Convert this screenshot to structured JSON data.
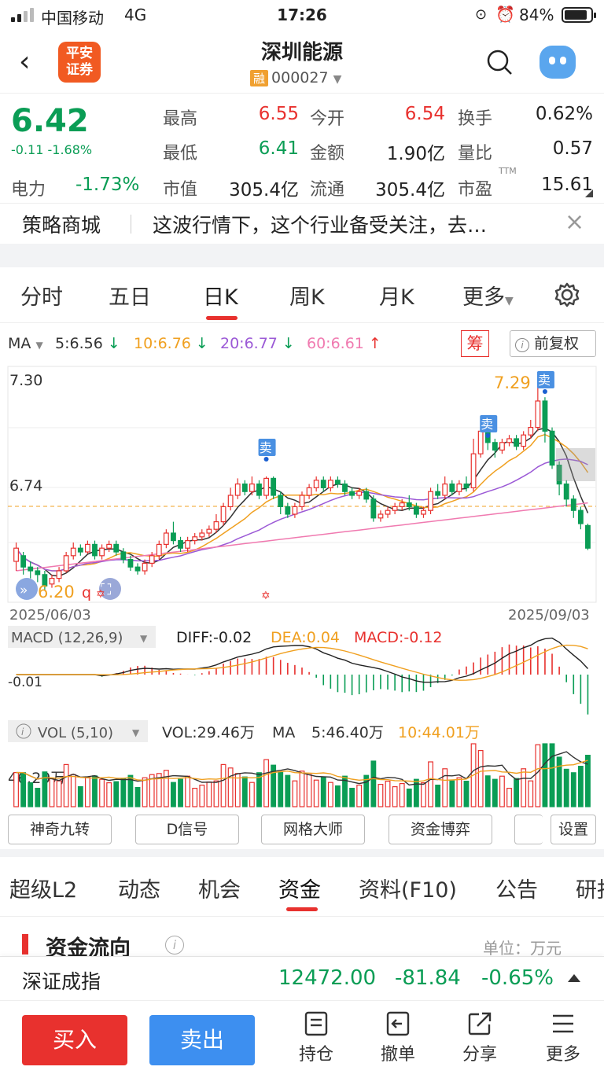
{
  "status_bar": {
    "carrier": "中国移动",
    "network": "4G",
    "time": "17:26",
    "battery": "84%"
  },
  "header": {
    "logo_line1": "平安",
    "logo_line2": "证券",
    "title": "深圳能源",
    "rong_badge": "融",
    "code": "000027"
  },
  "quote": {
    "price": "6.42",
    "change": "-0.11",
    "change_pct": "-1.68%",
    "sector_name": "电力",
    "sector_pct": "-1.73%",
    "fields": [
      {
        "label": "最高",
        "value": "6.55"
      },
      {
        "label": "今开",
        "value": "6.54"
      },
      {
        "label": "换手",
        "value": "0.62%"
      },
      {
        "label": "最低",
        "value": "6.41"
      },
      {
        "label": "金额",
        "value": "1.90亿"
      },
      {
        "label": "量比",
        "value": "0.57"
      },
      {
        "label": "市值",
        "value": "305.4亿"
      },
      {
        "label": "流通",
        "value": "305.4亿"
      },
      {
        "label": "市盈",
        "value": "15.61"
      }
    ],
    "pe_sup": "TTM"
  },
  "banner": {
    "title": "策略商城",
    "text": "这波行情下，这个行业备受关注，去…",
    "close": "×"
  },
  "period_tabs": [
    "分时",
    "五日",
    "日K",
    "周K",
    "月K",
    "更多"
  ],
  "ma": {
    "label": "MA",
    "ma5": "5:6.56",
    "ma10": "10:6.76",
    "ma20": "20:6.77",
    "ma60": "60:6.61",
    "chip_btn": "筹",
    "adjust_btn": "前复权",
    "colors": {
      "ma5": "#333333",
      "ma10": "#f0a020",
      "ma20": "#9b59d6",
      "ma60": "#f07ab0"
    }
  },
  "chart_data": {
    "type": "candlestick",
    "start_date": "2025/06/03",
    "end_date": "2025/09/03",
    "price_ticks": [
      "7.30",
      "6.74"
    ],
    "ylim": [
      6.2,
      7.35
    ],
    "hi_label": "7.29",
    "lo_label": "6.20",
    "sell_mark": "卖",
    "candles": [
      [
        6.35,
        6.42,
        6.45,
        6.3
      ],
      [
        6.38,
        6.32,
        6.4,
        6.28
      ],
      [
        6.32,
        6.3,
        6.35,
        6.26
      ],
      [
        6.3,
        6.28,
        6.32,
        6.24
      ],
      [
        6.28,
        6.22,
        6.3,
        6.2
      ],
      [
        6.23,
        6.26,
        6.28,
        6.21
      ],
      [
        6.26,
        6.3,
        6.32,
        6.24
      ],
      [
        6.3,
        6.38,
        6.4,
        6.29
      ],
      [
        6.38,
        6.42,
        6.45,
        6.36
      ],
      [
        6.42,
        6.4,
        6.44,
        6.38
      ],
      [
        6.4,
        6.44,
        6.46,
        6.39
      ],
      [
        6.44,
        6.38,
        6.46,
        6.36
      ],
      [
        6.38,
        6.42,
        6.44,
        6.36
      ],
      [
        6.42,
        6.44,
        6.46,
        6.4
      ],
      [
        6.44,
        6.4,
        6.46,
        6.38
      ],
      [
        6.4,
        6.36,
        6.42,
        6.34
      ],
      [
        6.36,
        6.32,
        6.38,
        6.3
      ],
      [
        6.32,
        6.3,
        6.34,
        6.28
      ],
      [
        6.3,
        6.34,
        6.36,
        6.28
      ],
      [
        6.34,
        6.38,
        6.4,
        6.32
      ],
      [
        6.38,
        6.44,
        6.46,
        6.36
      ],
      [
        6.44,
        6.5,
        6.52,
        6.42
      ],
      [
        6.5,
        6.46,
        6.56,
        6.44
      ],
      [
        6.46,
        6.42,
        6.48,
        6.4
      ],
      [
        6.42,
        6.46,
        6.48,
        6.4
      ],
      [
        6.46,
        6.48,
        6.5,
        6.44
      ],
      [
        6.48,
        6.5,
        6.52,
        6.46
      ],
      [
        6.5,
        6.52,
        6.54,
        6.48
      ],
      [
        6.52,
        6.56,
        6.6,
        6.5
      ],
      [
        6.56,
        6.64,
        6.66,
        6.54
      ],
      [
        6.64,
        6.7,
        6.74,
        6.62
      ],
      [
        6.7,
        6.76,
        6.79,
        6.68
      ],
      [
        6.76,
        6.72,
        6.78,
        6.7
      ],
      [
        6.72,
        6.76,
        6.8,
        6.7
      ],
      [
        6.76,
        6.7,
        6.78,
        6.68
      ],
      [
        6.7,
        6.79,
        6.8,
        6.68
      ],
      [
        6.79,
        6.7,
        6.8,
        6.68
      ],
      [
        6.7,
        6.64,
        6.72,
        6.6
      ],
      [
        6.64,
        6.6,
        6.66,
        6.58
      ],
      [
        6.6,
        6.64,
        6.66,
        6.58
      ],
      [
        6.64,
        6.7,
        6.72,
        6.62
      ],
      [
        6.7,
        6.74,
        6.76,
        6.68
      ],
      [
        6.74,
        6.78,
        6.8,
        6.72
      ],
      [
        6.78,
        6.74,
        6.8,
        6.72
      ],
      [
        6.74,
        6.78,
        6.8,
        6.72
      ],
      [
        6.78,
        6.76,
        6.8,
        6.74
      ],
      [
        6.76,
        6.72,
        6.78,
        6.7
      ],
      [
        6.72,
        6.7,
        6.74,
        6.68
      ],
      [
        6.7,
        6.72,
        6.74,
        6.68
      ],
      [
        6.72,
        6.68,
        6.74,
        6.66
      ],
      [
        6.68,
        6.58,
        6.7,
        6.56
      ],
      [
        6.58,
        6.6,
        6.62,
        6.56
      ],
      [
        6.6,
        6.62,
        6.64,
        6.58
      ],
      [
        6.62,
        6.64,
        6.66,
        6.6
      ],
      [
        6.64,
        6.66,
        6.68,
        6.62
      ],
      [
        6.66,
        6.64,
        6.7,
        6.62
      ],
      [
        6.64,
        6.6,
        6.66,
        6.58
      ],
      [
        6.6,
        6.62,
        6.64,
        6.58
      ],
      [
        6.62,
        6.72,
        6.74,
        6.6
      ],
      [
        6.72,
        6.7,
        6.76,
        6.68
      ],
      [
        6.7,
        6.76,
        6.8,
        6.68
      ],
      [
        6.76,
        6.72,
        6.78,
        6.7
      ],
      [
        6.72,
        6.76,
        6.78,
        6.7
      ],
      [
        6.76,
        6.74,
        6.8,
        6.72
      ],
      [
        6.74,
        6.92,
        7.0,
        6.72
      ],
      [
        6.92,
        7.04,
        7.1,
        6.9
      ],
      [
        7.04,
        6.98,
        7.06,
        6.94
      ],
      [
        6.98,
        6.94,
        7.0,
        6.9
      ],
      [
        6.94,
        6.98,
        7.0,
        6.92
      ],
      [
        6.98,
        7.0,
        7.02,
        6.96
      ],
      [
        7.0,
        6.96,
        7.02,
        6.94
      ],
      [
        6.96,
        7.02,
        7.04,
        6.94
      ],
      [
        7.02,
        7.06,
        7.1,
        7.0
      ],
      [
        7.06,
        7.2,
        7.29,
        7.04
      ],
      [
        7.2,
        7.04,
        7.22,
        6.98
      ],
      [
        7.04,
        6.86,
        7.06,
        6.84
      ],
      [
        6.86,
        6.76,
        6.88,
        6.7
      ],
      [
        6.76,
        6.68,
        6.78,
        6.64
      ],
      [
        6.68,
        6.62,
        6.7,
        6.58
      ],
      [
        6.62,
        6.55,
        6.64,
        6.52
      ],
      [
        6.54,
        6.42,
        6.55,
        6.41
      ]
    ],
    "macd": {
      "label": "MACD (12,26,9)",
      "diff": "DIFF:-0.02",
      "dea": "DEA:0.04",
      "macd": "MACD:-0.12",
      "axis_label": "-0.01"
    },
    "vol": {
      "label": "VOL (5,10)",
      "vol": "VOL:29.46万",
      "ma_label": "MA",
      "ma5": "5:46.40万",
      "ma10": "10:44.01万",
      "axis_label": "46.29万"
    }
  },
  "indicator_buttons": [
    "神奇九转",
    "D信号",
    "网格大师",
    "资金博弈",
    "",
    "设置"
  ],
  "bottom_tabs": [
    "超级L2",
    "动态",
    "机会",
    "资金",
    "资料(F10)",
    "公告",
    "研报"
  ],
  "fund_flow": {
    "title": "资金流向",
    "info": "i",
    "unit": "单位：万元"
  },
  "index_bar": {
    "name": "深证成指",
    "value": "12472.00",
    "change": "-81.84",
    "pct": "-0.65%"
  },
  "toolbar": {
    "buy": "买入",
    "sell": "卖出",
    "hold": "持仓",
    "cancel": "撤单",
    "share": "分享",
    "more": "更多"
  }
}
